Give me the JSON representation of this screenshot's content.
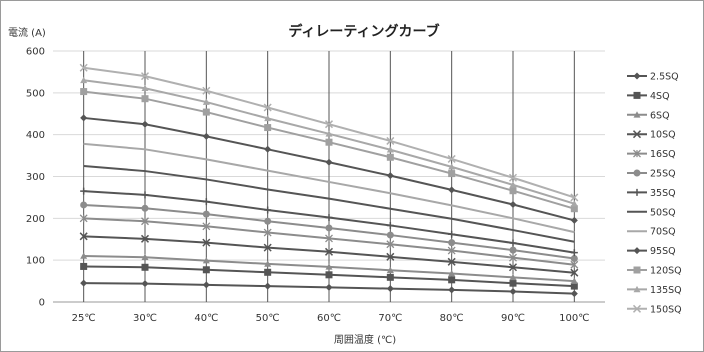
{
  "chart_data": {
    "type": "line",
    "title": "ディレーティングカーブ",
    "ylabel": "電流 (A)",
    "xlabel": "周囲温度 (℃)",
    "categories": [
      "25℃",
      "30℃",
      "40℃",
      "50℃",
      "60℃",
      "70℃",
      "80℃",
      "90℃",
      "100℃"
    ],
    "ylim": [
      0,
      600
    ],
    "yticks": [
      0,
      100,
      200,
      300,
      400,
      500,
      600
    ],
    "grid": true,
    "legend_position": "right",
    "series": [
      {
        "name": "2.5SQ",
        "color": "#555555",
        "marker": "diamond",
        "values": [
          45,
          44,
          41,
          38,
          35,
          32,
          29,
          25,
          20
        ]
      },
      {
        "name": "4SQ",
        "color": "#555555",
        "marker": "square",
        "values": [
          85,
          83,
          77,
          71,
          65,
          59,
          53,
          45,
          38
        ]
      },
      {
        "name": "6SQ",
        "color": "#8c8c8c",
        "marker": "triangle",
        "values": [
          110,
          107,
          99,
          91,
          84,
          76,
          68,
          59,
          50
        ]
      },
      {
        "name": "10SQ",
        "color": "#555555",
        "marker": "x",
        "values": [
          157,
          151,
          142,
          130,
          120,
          108,
          96,
          83,
          70
        ]
      },
      {
        "name": "16SQ",
        "color": "#8c8c8c",
        "marker": "star",
        "values": [
          200,
          193,
          181,
          166,
          152,
          138,
          123,
          106,
          89
        ]
      },
      {
        "name": "25SQ",
        "color": "#8c8c8c",
        "marker": "circle",
        "values": [
          232,
          224,
          210,
          193,
          177,
          160,
          142,
          124,
          104
        ]
      },
      {
        "name": "35SQ",
        "color": "#555555",
        "marker": "plus",
        "values": [
          265,
          256,
          240,
          220,
          202,
          183,
          162,
          141,
          118
        ]
      },
      {
        "name": "50SQ",
        "color": "#555555",
        "marker": "none",
        "values": [
          325,
          313,
          293,
          269,
          247,
          223,
          199,
          172,
          144
        ]
      },
      {
        "name": "70SQ",
        "color": "#a8a8a8",
        "marker": "none",
        "values": [
          378,
          365,
          341,
          314,
          287,
          260,
          231,
          200,
          167
        ]
      },
      {
        "name": "95SQ",
        "color": "#555555",
        "marker": "diamond",
        "values": [
          440,
          425,
          396,
          365,
          334,
          302,
          268,
          233,
          195
        ]
      },
      {
        "name": "120SQ",
        "color": "#a0a0a0",
        "marker": "square",
        "values": [
          503,
          486,
          454,
          417,
          382,
          346,
          307,
          266,
          223
        ]
      },
      {
        "name": "135SQ",
        "color": "#a8a8a8",
        "marker": "triangle",
        "values": [
          530,
          511,
          478,
          439,
          402,
          364,
          323,
          280,
          235
        ]
      },
      {
        "name": "150SQ",
        "color": "#b0b0b0",
        "marker": "x",
        "values": [
          560,
          540,
          505,
          465,
          425,
          385,
          342,
          297,
          250
        ]
      }
    ]
  }
}
